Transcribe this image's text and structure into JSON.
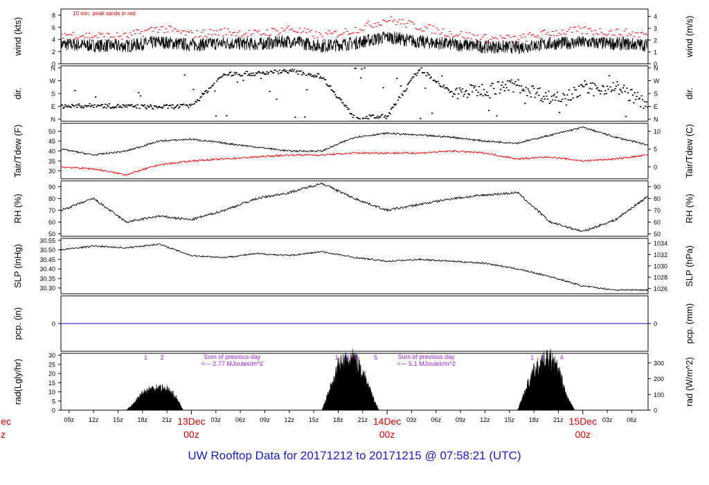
{
  "page": {
    "title": "UW Rooftop Data for 20171212  to  20171215 @ 07:58:21  (UTC)"
  },
  "colors": {
    "trace": "#000000",
    "peak": "#ff0000",
    "dewpoint": "#ff0000",
    "precip": "#0000cc",
    "annotation": "#a020f0",
    "day_label": "#dd0000",
    "title": "#1a1acc"
  },
  "x_axis": {
    "start_hour": 8,
    "end_hour": 80,
    "hour_ticks": [
      "09z",
      "12z",
      "15z",
      "18z",
      "21z",
      "03z",
      "06z",
      "09z",
      "12z",
      "15z",
      "18z",
      "21z",
      "03z",
      "06z",
      "09z",
      "12z",
      "15z",
      "18z",
      "21z",
      "03z",
      "06z"
    ],
    "hour_tick_values": [
      9,
      12,
      15,
      18,
      21,
      27,
      30,
      33,
      36,
      39,
      42,
      45,
      51,
      54,
      57,
      60,
      63,
      66,
      69,
      75,
      78
    ],
    "day_labels": [
      {
        "day": "13Dec",
        "time": "00z",
        "at": 24
      },
      {
        "day": "14Dec",
        "time": "00z",
        "at": 48
      },
      {
        "day": "15Dec",
        "time": "00z",
        "at": 72
      }
    ],
    "clipped_day_label": {
      "day": "ec",
      "time": "z"
    }
  },
  "chart_data": [
    {
      "type": "line",
      "id": "wind",
      "ylabel": "wind (kts)",
      "ylabel_right": "wind (m/s)",
      "ylim": [
        0,
        9
      ],
      "yticks": [
        0,
        2,
        4,
        6,
        8
      ],
      "right_ticks": [
        0,
        1,
        2,
        3,
        4
      ],
      "annotation": "10 min. peak winds in red",
      "x": [
        8,
        12,
        16,
        20,
        24,
        28,
        32,
        36,
        40,
        44,
        48,
        52,
        56,
        60,
        64,
        68,
        72,
        76,
        80
      ],
      "series": [
        {
          "values": [
            3.2,
            3.0,
            2.9,
            3.6,
            3.1,
            3.4,
            3.2,
            3.7,
            2.9,
            3.4,
            4.4,
            3.6,
            3.2,
            2.8,
            2.7,
            3.3,
            3.5,
            3.3,
            3.1
          ]
        },
        {
          "values": [
            4.6,
            4.3,
            4.2,
            5.6,
            4.5,
            5.0,
            4.6,
            5.5,
            4.2,
            5.3,
            7.0,
            5.8,
            4.7,
            3.9,
            3.8,
            4.8,
            5.2,
            4.9,
            4.5
          ]
        }
      ]
    },
    {
      "type": "scatter",
      "id": "dir",
      "ylabel": "dir.",
      "ylabel_right": "dir.",
      "yticks": [
        "N",
        "E",
        "S",
        "W",
        "N"
      ],
      "right_ticks": [
        "N",
        "E",
        "S",
        "W",
        "N"
      ],
      "x": [
        8,
        12,
        16,
        20,
        24,
        28,
        32,
        36,
        40,
        44,
        48,
        52,
        56,
        60,
        64,
        68,
        72,
        76,
        80
      ],
      "values": [
        90,
        95,
        90,
        85,
        92,
        315,
        320,
        340,
        300,
        10,
        20,
        355,
        180,
        210,
        240,
        150,
        200,
        230,
        100
      ]
    },
    {
      "type": "line",
      "id": "temp",
      "ylabel": "Tair/Tdew (F)",
      "ylabel_right": "Tair/Tdew (C)",
      "ylim": [
        26,
        54
      ],
      "yticks": [
        30,
        35,
        40,
        45,
        50
      ],
      "right_ticks": [
        0,
        5,
        10
      ],
      "x": [
        8,
        12,
        16,
        20,
        24,
        28,
        32,
        36,
        40,
        44,
        48,
        52,
        56,
        60,
        64,
        68,
        72,
        76,
        80
      ],
      "series": [
        {
          "name": "Tair",
          "values": [
            41,
            38,
            40,
            45,
            46,
            44,
            42,
            40,
            40,
            47,
            49,
            48,
            47,
            45,
            44,
            48,
            52,
            47,
            43
          ]
        },
        {
          "name": "Tdew",
          "values": [
            32,
            31,
            28,
            33,
            35,
            36,
            37,
            38,
            38,
            39,
            39,
            39,
            40,
            39,
            36,
            37,
            35,
            36,
            38
          ]
        }
      ]
    },
    {
      "type": "line",
      "id": "rh",
      "ylabel": "RH (%)",
      "ylabel_right": "RH (%)",
      "ylim": [
        48,
        95
      ],
      "yticks": [
        50,
        60,
        70,
        80,
        90
      ],
      "right_ticks": [
        50,
        60,
        70,
        80,
        90
      ],
      "x": [
        8,
        12,
        16,
        20,
        24,
        28,
        32,
        36,
        40,
        44,
        48,
        52,
        56,
        60,
        64,
        68,
        72,
        76,
        80
      ],
      "values": [
        70,
        80,
        60,
        65,
        62,
        70,
        80,
        85,
        93,
        80,
        70,
        75,
        80,
        83,
        85,
        60,
        52,
        62,
        82
      ]
    },
    {
      "type": "line",
      "id": "slp",
      "ylabel": "SLP (inHg)",
      "ylabel_right": "SLP (hPa)",
      "ylim": [
        30.27,
        30.56
      ],
      "yticks": [
        30.3,
        30.35,
        30.4,
        30.45,
        30.5,
        30.55
      ],
      "right_ticks": [
        1026,
        1028,
        1030,
        1032,
        1034
      ],
      "x": [
        8,
        12,
        16,
        20,
        24,
        28,
        32,
        36,
        40,
        44,
        48,
        52,
        56,
        60,
        64,
        68,
        72,
        76,
        80
      ],
      "values": [
        30.5,
        30.52,
        30.51,
        30.53,
        30.47,
        30.46,
        30.48,
        30.47,
        30.49,
        30.46,
        30.44,
        30.45,
        30.44,
        30.43,
        30.4,
        30.36,
        30.31,
        30.29,
        30.29
      ]
    },
    {
      "type": "line",
      "id": "pcp",
      "ylabel": "pcp. (in)",
      "ylabel_right": "pcp. (mm)",
      "ylim": [
        -1,
        1
      ],
      "yticks": [
        0
      ],
      "right_ticks": [
        0
      ],
      "x": [
        8,
        80
      ],
      "values": [
        0,
        0
      ]
    },
    {
      "type": "area",
      "id": "rad",
      "ylabel": "rad(Lgly/hr)",
      "ylabel_right": "rad (W/m^2)",
      "ylim": [
        0,
        31
      ],
      "yticks": [
        0,
        5,
        10,
        15,
        20,
        25,
        30
      ],
      "right_ticks": [
        0,
        100,
        200,
        300
      ],
      "x": [
        16,
        17,
        18,
        19,
        20,
        21,
        22,
        23,
        40,
        41,
        42,
        43,
        44,
        45,
        46,
        47,
        64,
        65,
        66,
        67,
        68,
        69,
        70,
        71
      ],
      "values": [
        0,
        4,
        10,
        12,
        13,
        12,
        8,
        0,
        0,
        12,
        25,
        28,
        29,
        22,
        10,
        0,
        0,
        12,
        22,
        27,
        29,
        23,
        8,
        0
      ],
      "day_numbers": [
        {
          "label": "1",
          "at": 18.4
        },
        {
          "label": "2",
          "at": 20.4
        },
        {
          "label": "1",
          "at": 41.8
        },
        {
          "label": "3",
          "at": 43.2
        },
        {
          "label": "4",
          "at": 44.2
        },
        {
          "label": "5",
          "at": 46.6
        },
        {
          "label": "1",
          "at": 65.8
        },
        {
          "label": "2",
          "at": 67.0
        },
        {
          "label": "4",
          "at": 69.4
        }
      ],
      "notes": [
        {
          "line1": "Sum of previous day",
          "line2": "<--- 2.77 MJoules/m^2",
          "at": 29.0
        },
        {
          "line1": "Sum of previous day",
          "line2": "<--- 5.1 MJoules/m^2",
          "at": 52.8
        }
      ]
    }
  ]
}
